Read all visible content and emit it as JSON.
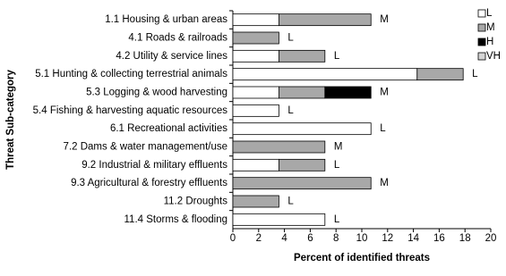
{
  "chart_data": {
    "type": "stacked-bar-horizontal",
    "x_label": "Percent of identified threats",
    "y_label": "Threat Sub-category",
    "categories": [
      "1.1 Housing & urban areas",
      "4.1 Roads & railroads",
      "4.2 Utility & service lines",
      "5.1 Hunting & collecting terrestrial animals",
      "5.3 Logging & wood harvesting",
      "5.4 Fishing & harvesting aquatic resources",
      "6.1 Recreational activities",
      "7.2 Dams & water management/use",
      "9.2 Industrial & military effluents",
      "9.3 Agricultural & forestry effluents",
      "11.2 Droughts",
      "11.4 Storms & flooding"
    ],
    "series": [
      {
        "name": "L",
        "color": "#ffffff",
        "values": [
          3.57,
          0,
          3.57,
          14.29,
          3.57,
          3.57,
          10.71,
          0,
          3.57,
          0,
          0,
          7.14
        ]
      },
      {
        "name": "M",
        "color": "#a8a8a8",
        "values": [
          7.14,
          3.57,
          3.57,
          3.57,
          3.57,
          0,
          0,
          7.14,
          3.57,
          10.71,
          3.57,
          0
        ]
      },
      {
        "name": "H",
        "color": "#000000",
        "values": [
          0,
          0,
          0,
          0,
          3.57,
          0,
          0,
          0,
          0,
          0,
          0,
          0
        ]
      },
      {
        "name": "VH",
        "color": "#d4d4d4",
        "values": [
          0,
          0,
          0,
          0,
          0,
          0,
          0,
          0,
          0,
          0,
          0,
          0
        ]
      }
    ],
    "bar_labels": [
      "M",
      "L",
      "L",
      "L",
      "M",
      "L",
      "L",
      "M",
      "L",
      "M",
      "L",
      "L"
    ],
    "xlim": [
      0,
      20
    ],
    "xticks": [
      0,
      2,
      4,
      6,
      8,
      10,
      12,
      14,
      16,
      18,
      20
    ],
    "legend": "top-right"
  }
}
